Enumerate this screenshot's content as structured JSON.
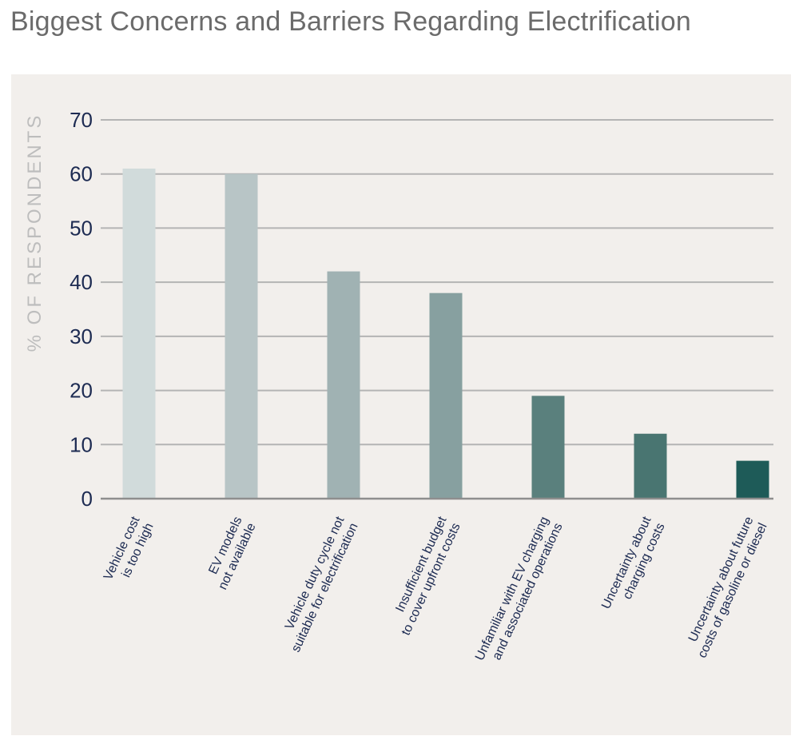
{
  "page": {
    "title": "Biggest Concerns and Barriers Regarding Electrification"
  },
  "colors": {
    "panel_background": "#f2efec",
    "gridline": "#b4b4b4",
    "axis_line": "#8e8e8e",
    "tick_text": "#1d2b52",
    "axis_title_text": "#bdbdbd",
    "bar_colors": [
      "#d1dbdb",
      "#b8c5c6",
      "#a0b2b3",
      "#87a0a0",
      "#5a807d",
      "#497571",
      "#1e5b58"
    ]
  },
  "chart_data": {
    "type": "bar",
    "title": "Biggest Concerns and Barriers Regarding Electrification",
    "xlabel": "",
    "ylabel": "% OF RESPONDENTS",
    "ylim": [
      0,
      70
    ],
    "yticks": [
      0,
      10,
      20,
      30,
      40,
      50,
      60,
      70
    ],
    "ytick_labels": [
      "0",
      "10",
      "20",
      "30",
      "40",
      "50",
      "60",
      "70"
    ],
    "grid": true,
    "legend": false,
    "categories": [
      [
        "Vehicle cost",
        "is too high"
      ],
      [
        "EV models",
        "not available"
      ],
      [
        "Vehicle duty cycle not",
        "suitable for electrification"
      ],
      [
        "Insufficient budget",
        "to cover upfront costs"
      ],
      [
        "Unfamiliar with EV charging",
        "and associated operations"
      ],
      [
        "Uncertainty about",
        "charging costs"
      ],
      [
        "Uncertainty about future",
        "costs of gasoline or diesel"
      ]
    ],
    "values": [
      61,
      60,
      42,
      38,
      19,
      12,
      7
    ]
  }
}
